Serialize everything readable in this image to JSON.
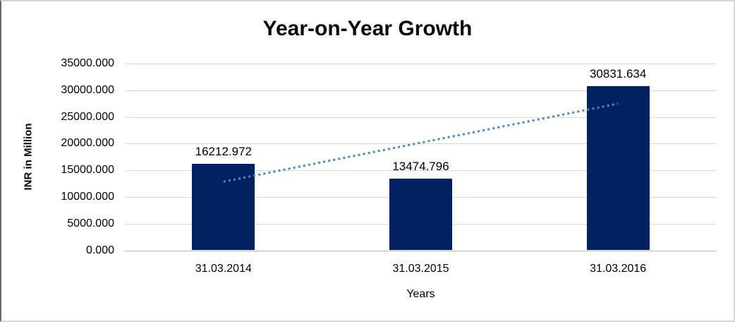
{
  "chart_data": {
    "type": "bar",
    "title": "Year-on-Year Growth",
    "xlabel": "Years",
    "ylabel": "INR in Million",
    "categories": [
      "31.03.2014",
      "31.03.2015",
      "31.03.2016"
    ],
    "values": [
      16212.972,
      13474.796,
      30831.634
    ],
    "data_labels": [
      "16212.972",
      "13474.796",
      "30831.634"
    ],
    "ylim": [
      0,
      35000
    ],
    "y_tick_step": 5000,
    "y_tick_labels": [
      "0.000",
      "5000.000",
      "10000.000",
      "15000.000",
      "20000.000",
      "25000.000",
      "30000.000",
      "35000.000"
    ],
    "grid": true,
    "legend": "none",
    "bar_color": "#002060",
    "trendline": {
      "type": "linear",
      "style": "dotted",
      "color": "#4a86c8",
      "fit_values": [
        12863.803,
        20173.134,
        27482.465
      ]
    },
    "colors": {
      "gridline": "#d9d9d9",
      "axis_line": "#b9b9b9",
      "text": "#000000",
      "frame_border": "#d6d6d6",
      "frame_left_edge": "#676d79"
    }
  }
}
